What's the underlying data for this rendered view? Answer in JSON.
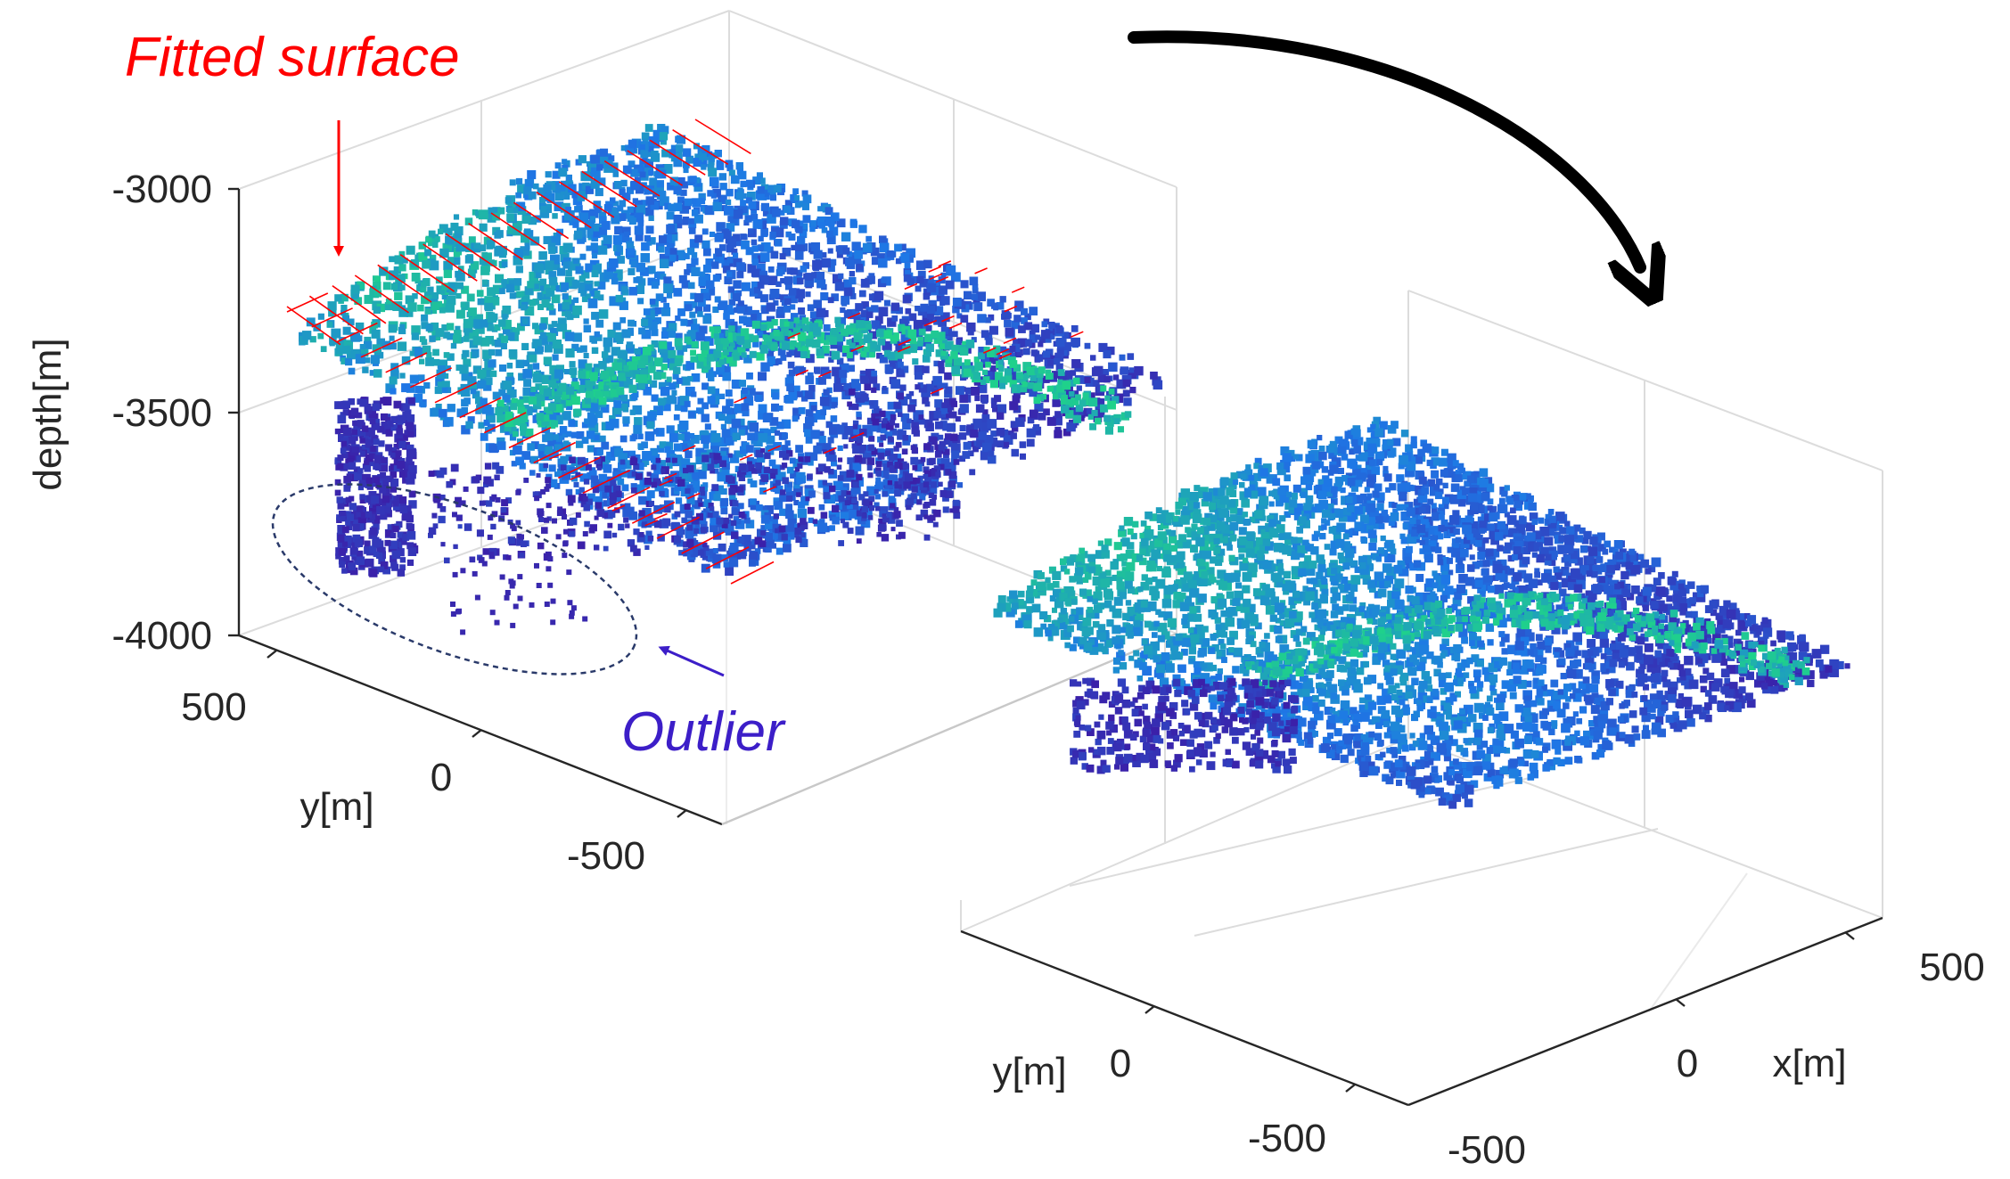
{
  "chart_data": [
    {
      "type": "scatter",
      "subtype": "3d-point-cloud",
      "title": "",
      "zlabel": "depth[m]",
      "ylabel": "y[m]",
      "xlabel": "",
      "zlim": [
        -4000,
        -3000
      ],
      "ylim": [
        -500,
        500
      ],
      "z_ticks": [
        "-3000",
        "-3500",
        "-4000"
      ],
      "y_ticks": [
        "500",
        "0",
        "-500"
      ],
      "grid": true,
      "colormap": "parula",
      "color_low": "#3b1fa8",
      "color_high": "#1fd28a",
      "surface_color": "#ff0000",
      "annotations": [
        {
          "text": "Fitted surface",
          "color": "#ff0000"
        },
        {
          "text": "Outlier",
          "color": "#3c1ec8"
        }
      ]
    },
    {
      "type": "scatter",
      "subtype": "3d-point-cloud",
      "title": "",
      "xlabel": "x[m]",
      "ylabel": "y[m]",
      "xlim": [
        -500,
        500
      ],
      "ylim": [
        -500,
        500
      ],
      "x_ticks": [
        "500",
        "0",
        "-500"
      ],
      "y_ticks": [
        "0",
        "-500"
      ],
      "grid": true,
      "colormap": "parula",
      "color_low": "#3b1fa8",
      "color_high": "#1fd28a"
    }
  ]
}
